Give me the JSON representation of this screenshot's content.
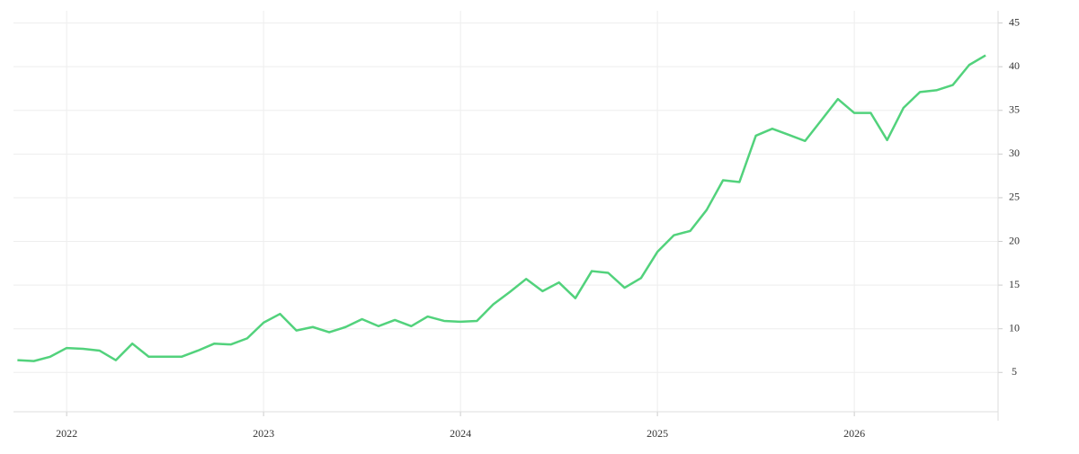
{
  "chart_data": {
    "type": "line",
    "x": [
      "2021-10",
      "2021-11",
      "2021-12",
      "2022-01",
      "2022-02",
      "2022-03",
      "2022-04",
      "2022-05",
      "2022-06",
      "2022-07",
      "2022-08",
      "2022-09",
      "2022-10",
      "2022-11",
      "2022-12",
      "2023-01",
      "2023-02",
      "2023-03",
      "2023-04",
      "2023-05",
      "2023-06",
      "2023-07",
      "2023-08",
      "2023-09",
      "2023-10",
      "2023-11",
      "2023-12",
      "2024-01",
      "2024-02",
      "2024-03",
      "2024-04",
      "2024-05",
      "2024-06",
      "2024-07",
      "2024-08",
      "2024-09",
      "2024-10",
      "2024-11",
      "2024-12",
      "2025-01",
      "2025-02",
      "2025-03",
      "2025-04",
      "2025-05",
      "2025-06",
      "2025-07",
      "2025-08",
      "2025-09",
      "2025-10",
      "2025-11",
      "2025-12",
      "2026-01",
      "2026-02",
      "2026-03",
      "2026-04",
      "2026-05",
      "2026-06",
      "2026-07",
      "2026-08",
      "2026-09"
    ],
    "series": [
      {
        "color": "#52d27c",
        "values": [
          6.4,
          6.3,
          6.8,
          7.8,
          7.7,
          7.5,
          6.4,
          8.3,
          6.8,
          6.8,
          6.8,
          7.5,
          8.3,
          8.2,
          8.9,
          10.7,
          11.7,
          9.8,
          10.2,
          9.6,
          10.2,
          11.1,
          10.3,
          11.0,
          10.3,
          11.4,
          10.9,
          10.8,
          10.9,
          12.8,
          14.2,
          15.7,
          14.3,
          15.3,
          13.5,
          16.6,
          16.4,
          14.7,
          15.8,
          18.8,
          20.7,
          21.2,
          23.6,
          27.0,
          26.8,
          32.1,
          32.9,
          32.2,
          31.5,
          33.9,
          36.3,
          34.7,
          34.7,
          31.6,
          35.3,
          37.1,
          37.3,
          37.9,
          40.2,
          41.3
        ]
      }
    ],
    "xlim": [
      2021.73,
      2026.73
    ],
    "xticks": [
      2022,
      2023,
      2024,
      2025,
      2026
    ],
    "ylim": [
      0.5,
      46.4
    ],
    "yticks": [
      5,
      10,
      15,
      20,
      25,
      30,
      35,
      40,
      45
    ],
    "grid": true,
    "y_axis_side": "right"
  }
}
